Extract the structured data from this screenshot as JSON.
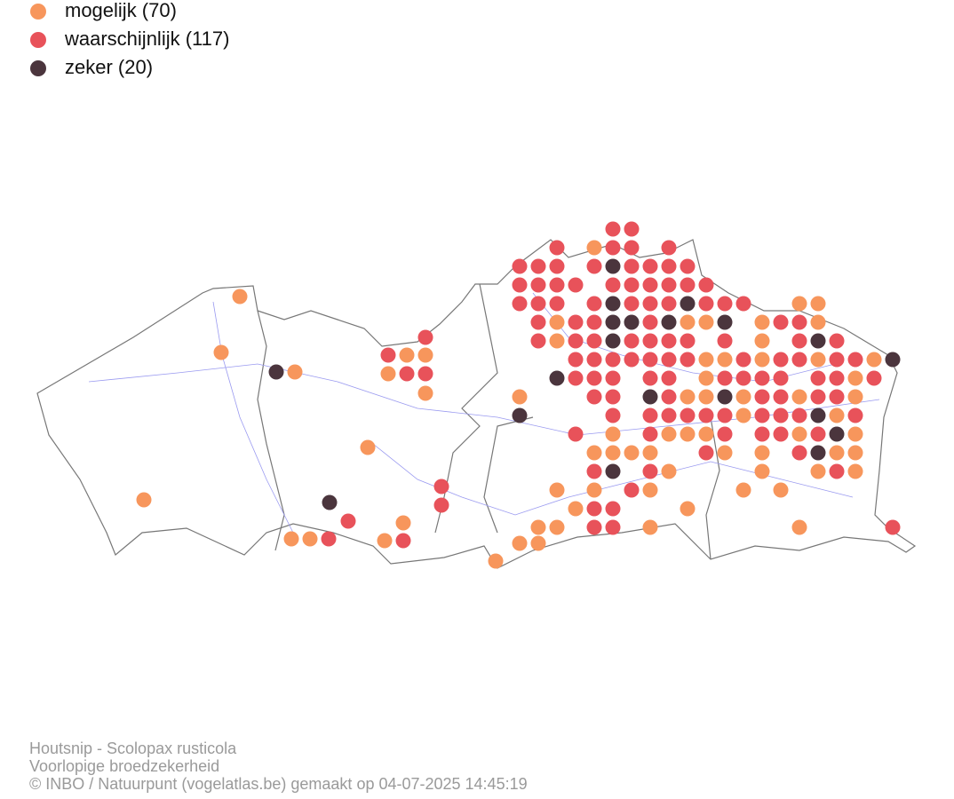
{
  "legend": {
    "items": [
      {
        "label": "mogelijk (70)",
        "color": "#f7965c"
      },
      {
        "label": "waarschijnlijk (117)",
        "color": "#e8525a"
      },
      {
        "label": "zeker (20)",
        "color": "#4b353d"
      }
    ]
  },
  "footer": {
    "lines": [
      "Houtsnip - Scolopax rusticola",
      "Voorlopige broedzekerheid",
      "© INBO / Natuurpunt (vogelatlas.be) gemaakt op 04-07-2025 14:45:19"
    ]
  }
}
